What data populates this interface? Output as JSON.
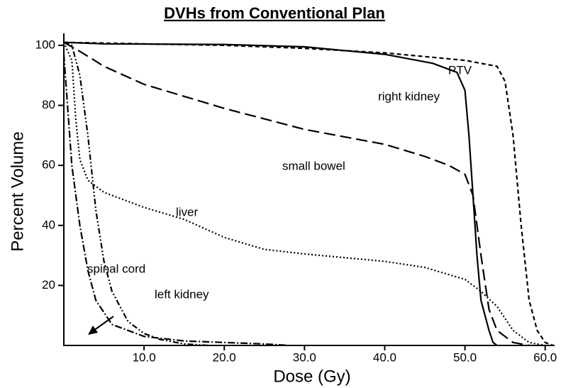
{
  "chart_data": {
    "type": "line",
    "title": "DVHs from Conventional Plan",
    "xlabel": "Dose (Gy)",
    "ylabel": "Percent Volume",
    "xlim": [
      0,
      61
    ],
    "ylim": [
      0,
      104
    ],
    "xticks": [
      {
        "value": 10,
        "label": "10.0"
      },
      {
        "value": 20,
        "label": "20.0"
      },
      {
        "value": 30,
        "label": "30.0"
      },
      {
        "value": 40,
        "label": "40.0"
      },
      {
        "value": 50,
        "label": "50.0"
      },
      {
        "value": 60,
        "label": "60.0"
      }
    ],
    "yticks": [
      20,
      40,
      60,
      80,
      100
    ],
    "grid": false,
    "series": [
      {
        "name": "PTV",
        "color": "#000000",
        "dash": "6,4",
        "x": [
          0,
          10,
          20,
          30,
          40,
          50,
          54,
          55,
          56,
          57,
          58,
          59,
          60,
          61
        ],
        "values": [
          101,
          100.5,
          100,
          99,
          97.5,
          95,
          93,
          88,
          70,
          40,
          15,
          5,
          1,
          0
        ]
      },
      {
        "name": "right kidney",
        "color": "#000000",
        "dash": "none",
        "x": [
          0,
          5,
          20,
          30,
          40,
          46,
          49,
          50,
          50.5,
          51,
          51.5,
          52,
          53,
          53.5,
          54
        ],
        "values": [
          101,
          100.5,
          100.3,
          99.5,
          97,
          94,
          91,
          85,
          70,
          50,
          30,
          15,
          5,
          1,
          0
        ]
      },
      {
        "name": "small bowel",
        "color": "#000000",
        "dash": "16,7",
        "x": [
          0,
          2,
          5,
          10,
          20,
          30,
          40,
          45,
          48,
          50,
          51,
          52,
          53,
          54,
          56,
          58
        ],
        "values": [
          101,
          98,
          93,
          87,
          79,
          72,
          67,
          63,
          60,
          57,
          50,
          30,
          12,
          5,
          1,
          0
        ]
      },
      {
        "name": "liver",
        "color": "#000000",
        "dash": "2,3",
        "x": [
          0,
          1,
          1.5,
          2,
          3,
          5,
          10,
          15,
          20,
          25,
          30,
          40,
          45,
          50,
          52,
          54,
          56,
          58,
          60
        ],
        "values": [
          101,
          95,
          75,
          62,
          55,
          51,
          46,
          42,
          36,
          32,
          30.5,
          28,
          26,
          22,
          18,
          13,
          5,
          1,
          0
        ]
      },
      {
        "name": "spinal cord",
        "color": "#000000",
        "dash": "8,3,2,3,2,3",
        "x": [
          0,
          1,
          2,
          3,
          4,
          5,
          6,
          8,
          10,
          12,
          15,
          18
        ],
        "values": [
          101,
          100,
          90,
          70,
          45,
          28,
          18,
          8,
          4,
          2,
          0.5,
          0
        ]
      },
      {
        "name": "left kidney",
        "color": "#000000",
        "dash": "10,3,2,3",
        "x": [
          0,
          1,
          2,
          3,
          4,
          6,
          10,
          15,
          20,
          25,
          28
        ],
        "values": [
          97,
          60,
          40,
          25,
          15,
          7,
          3,
          1.5,
          1,
          0.5,
          0
        ]
      }
    ],
    "annotations": [
      "PTV",
      "right kidney",
      "small bowel",
      "liver",
      "spinal cord",
      "left kidney"
    ]
  }
}
